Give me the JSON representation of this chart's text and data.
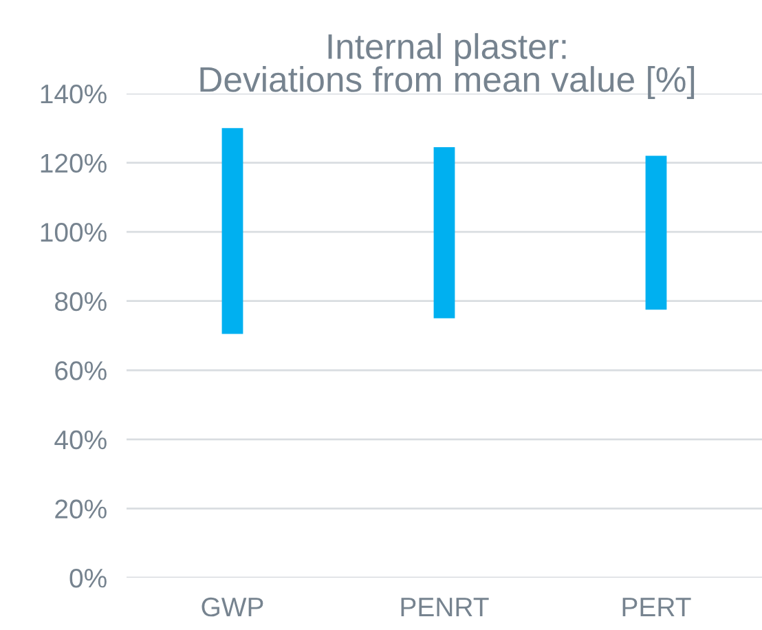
{
  "chart_data": {
    "type": "bar",
    "title": "Internal plaster:\nDeviations from mean value [%]",
    "categories": [
      "GWP",
      "PENRT",
      "PERT"
    ],
    "base": [
      70.5,
      75,
      77.5
    ],
    "values": [
      59.5,
      49.5,
      44.5
    ],
    "color": "#00b0f0",
    "ylim": [
      0,
      140
    ],
    "yticks": [
      {
        "value": 0,
        "label": "0%"
      },
      {
        "value": 20,
        "label": "20%"
      },
      {
        "value": 40,
        "label": "40%"
      },
      {
        "value": 60,
        "label": "60%"
      },
      {
        "value": 80,
        "label": "80%"
      },
      {
        "value": 100,
        "label": "100%"
      },
      {
        "value": 120,
        "label": "120%"
      },
      {
        "value": 140,
        "label": "140%"
      }
    ],
    "grid": "y"
  }
}
